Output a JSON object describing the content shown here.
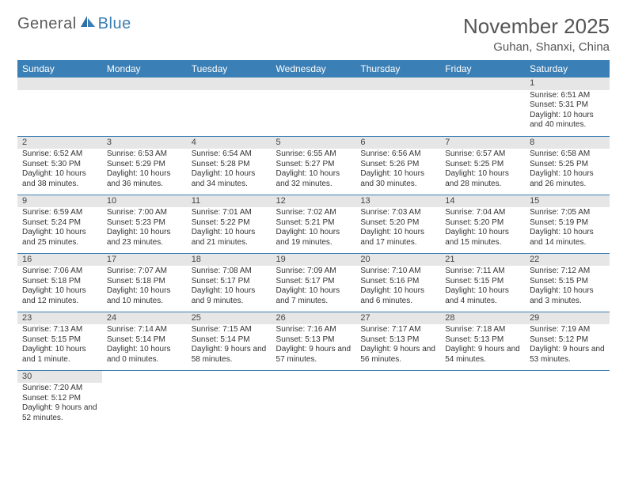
{
  "brand": {
    "part1": "General",
    "part2": "Blue"
  },
  "title": "November 2025",
  "location": "Guhan, Shanxi, China",
  "header_bg": "#3a7fb5",
  "header_fg": "#ffffff",
  "rule_color": "#3a7fb5",
  "daynum_bg": "#e6e6e6",
  "weekdays": [
    "Sunday",
    "Monday",
    "Tuesday",
    "Wednesday",
    "Thursday",
    "Friday",
    "Saturday"
  ],
  "weeks": [
    [
      null,
      null,
      null,
      null,
      null,
      null,
      {
        "n": "1",
        "sr": "Sunrise: 6:51 AM",
        "ss": "Sunset: 5:31 PM",
        "dl": "Daylight: 10 hours and 40 minutes."
      }
    ],
    [
      {
        "n": "2",
        "sr": "Sunrise: 6:52 AM",
        "ss": "Sunset: 5:30 PM",
        "dl": "Daylight: 10 hours and 38 minutes."
      },
      {
        "n": "3",
        "sr": "Sunrise: 6:53 AM",
        "ss": "Sunset: 5:29 PM",
        "dl": "Daylight: 10 hours and 36 minutes."
      },
      {
        "n": "4",
        "sr": "Sunrise: 6:54 AM",
        "ss": "Sunset: 5:28 PM",
        "dl": "Daylight: 10 hours and 34 minutes."
      },
      {
        "n": "5",
        "sr": "Sunrise: 6:55 AM",
        "ss": "Sunset: 5:27 PM",
        "dl": "Daylight: 10 hours and 32 minutes."
      },
      {
        "n": "6",
        "sr": "Sunrise: 6:56 AM",
        "ss": "Sunset: 5:26 PM",
        "dl": "Daylight: 10 hours and 30 minutes."
      },
      {
        "n": "7",
        "sr": "Sunrise: 6:57 AM",
        "ss": "Sunset: 5:25 PM",
        "dl": "Daylight: 10 hours and 28 minutes."
      },
      {
        "n": "8",
        "sr": "Sunrise: 6:58 AM",
        "ss": "Sunset: 5:25 PM",
        "dl": "Daylight: 10 hours and 26 minutes."
      }
    ],
    [
      {
        "n": "9",
        "sr": "Sunrise: 6:59 AM",
        "ss": "Sunset: 5:24 PM",
        "dl": "Daylight: 10 hours and 25 minutes."
      },
      {
        "n": "10",
        "sr": "Sunrise: 7:00 AM",
        "ss": "Sunset: 5:23 PM",
        "dl": "Daylight: 10 hours and 23 minutes."
      },
      {
        "n": "11",
        "sr": "Sunrise: 7:01 AM",
        "ss": "Sunset: 5:22 PM",
        "dl": "Daylight: 10 hours and 21 minutes."
      },
      {
        "n": "12",
        "sr": "Sunrise: 7:02 AM",
        "ss": "Sunset: 5:21 PM",
        "dl": "Daylight: 10 hours and 19 minutes."
      },
      {
        "n": "13",
        "sr": "Sunrise: 7:03 AM",
        "ss": "Sunset: 5:20 PM",
        "dl": "Daylight: 10 hours and 17 minutes."
      },
      {
        "n": "14",
        "sr": "Sunrise: 7:04 AM",
        "ss": "Sunset: 5:20 PM",
        "dl": "Daylight: 10 hours and 15 minutes."
      },
      {
        "n": "15",
        "sr": "Sunrise: 7:05 AM",
        "ss": "Sunset: 5:19 PM",
        "dl": "Daylight: 10 hours and 14 minutes."
      }
    ],
    [
      {
        "n": "16",
        "sr": "Sunrise: 7:06 AM",
        "ss": "Sunset: 5:18 PM",
        "dl": "Daylight: 10 hours and 12 minutes."
      },
      {
        "n": "17",
        "sr": "Sunrise: 7:07 AM",
        "ss": "Sunset: 5:18 PM",
        "dl": "Daylight: 10 hours and 10 minutes."
      },
      {
        "n": "18",
        "sr": "Sunrise: 7:08 AM",
        "ss": "Sunset: 5:17 PM",
        "dl": "Daylight: 10 hours and 9 minutes."
      },
      {
        "n": "19",
        "sr": "Sunrise: 7:09 AM",
        "ss": "Sunset: 5:17 PM",
        "dl": "Daylight: 10 hours and 7 minutes."
      },
      {
        "n": "20",
        "sr": "Sunrise: 7:10 AM",
        "ss": "Sunset: 5:16 PM",
        "dl": "Daylight: 10 hours and 6 minutes."
      },
      {
        "n": "21",
        "sr": "Sunrise: 7:11 AM",
        "ss": "Sunset: 5:15 PM",
        "dl": "Daylight: 10 hours and 4 minutes."
      },
      {
        "n": "22",
        "sr": "Sunrise: 7:12 AM",
        "ss": "Sunset: 5:15 PM",
        "dl": "Daylight: 10 hours and 3 minutes."
      }
    ],
    [
      {
        "n": "23",
        "sr": "Sunrise: 7:13 AM",
        "ss": "Sunset: 5:15 PM",
        "dl": "Daylight: 10 hours and 1 minute."
      },
      {
        "n": "24",
        "sr": "Sunrise: 7:14 AM",
        "ss": "Sunset: 5:14 PM",
        "dl": "Daylight: 10 hours and 0 minutes."
      },
      {
        "n": "25",
        "sr": "Sunrise: 7:15 AM",
        "ss": "Sunset: 5:14 PM",
        "dl": "Daylight: 9 hours and 58 minutes."
      },
      {
        "n": "26",
        "sr": "Sunrise: 7:16 AM",
        "ss": "Sunset: 5:13 PM",
        "dl": "Daylight: 9 hours and 57 minutes."
      },
      {
        "n": "27",
        "sr": "Sunrise: 7:17 AM",
        "ss": "Sunset: 5:13 PM",
        "dl": "Daylight: 9 hours and 56 minutes."
      },
      {
        "n": "28",
        "sr": "Sunrise: 7:18 AM",
        "ss": "Sunset: 5:13 PM",
        "dl": "Daylight: 9 hours and 54 minutes."
      },
      {
        "n": "29",
        "sr": "Sunrise: 7:19 AM",
        "ss": "Sunset: 5:12 PM",
        "dl": "Daylight: 9 hours and 53 minutes."
      }
    ],
    [
      {
        "n": "30",
        "sr": "Sunrise: 7:20 AM",
        "ss": "Sunset: 5:12 PM",
        "dl": "Daylight: 9 hours and 52 minutes."
      },
      null,
      null,
      null,
      null,
      null,
      null
    ]
  ]
}
